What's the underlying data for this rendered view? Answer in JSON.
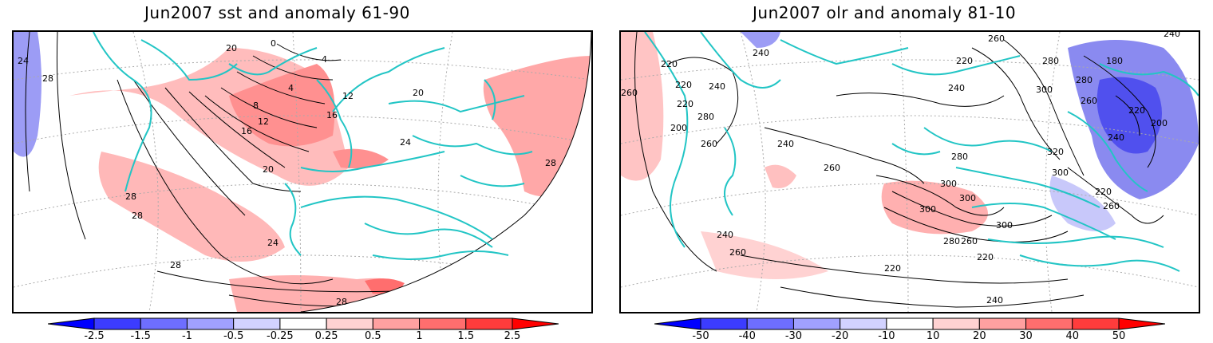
{
  "left_panel": {
    "title": "Jun2007 sst and anomaly 61-90",
    "contour_labels": [
      "24",
      "28",
      "20",
      "16",
      "12",
      "8",
      "4",
      "4",
      "12",
      "16",
      "20",
      "24",
      "28",
      "20",
      "28",
      "28",
      "24",
      "28",
      "28",
      "0"
    ],
    "colorbar": {
      "tick_labels": [
        "-2.5",
        "-1.5",
        "-1",
        "-0.5",
        "-0.25",
        "0.25",
        "0.5",
        "1",
        "1.5",
        "2.5"
      ],
      "colors": [
        "#0000ff",
        "#3c3cff",
        "#6e6eff",
        "#a0a0ff",
        "#d2d2ff",
        "#ffffff",
        "#ffd2d2",
        "#ffa0a0",
        "#ff6e6e",
        "#ff3c3c",
        "#ff0000"
      ]
    }
  },
  "right_panel": {
    "title": "Jun2007 olr and anomaly 81-10",
    "contour_labels": [
      "220",
      "240",
      "220",
      "260",
      "220",
      "240",
      "200",
      "280",
      "260",
      "240",
      "260",
      "280",
      "300",
      "300",
      "300",
      "320",
      "300",
      "300",
      "280",
      "260",
      "240",
      "260",
      "220",
      "240",
      "220",
      "220",
      "240",
      "260",
      "280",
      "180",
      "220",
      "200",
      "240",
      "220",
      "260",
      "240",
      "300",
      "280",
      "260"
    ],
    "colorbar": {
      "tick_labels": [
        "-50",
        "-40",
        "-30",
        "-20",
        "-10",
        "10",
        "20",
        "30",
        "40",
        "50"
      ],
      "colors": [
        "#0000ff",
        "#3c3cff",
        "#6e6eff",
        "#a0a0ff",
        "#d2d2ff",
        "#ffffff",
        "#ffd2d2",
        "#ffa0a0",
        "#ff6e6e",
        "#ff3c3c",
        "#ff0000"
      ]
    }
  },
  "style": {
    "coastline_color": "#22c5c5",
    "contour_color": "#000000",
    "grid_color": "#999999",
    "positive_anomaly_color": "#ffaaaa",
    "negative_anomaly_color": "#aaaaff"
  }
}
